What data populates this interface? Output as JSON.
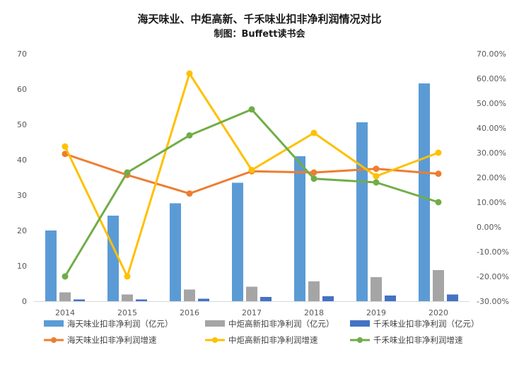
{
  "chart_data": {
    "type": "bar",
    "title": "海天味业、中炬高新、千禾味业扣非净利润情况对比",
    "subtitle": "制图：Buffett读书会",
    "categories": [
      "2014",
      "2015",
      "2016",
      "2017",
      "2018",
      "2019",
      "2020"
    ],
    "y_left": {
      "min": 0,
      "max": 70,
      "step": 10,
      "ticks": [
        "0",
        "10",
        "20",
        "30",
        "40",
        "50",
        "60",
        "70"
      ]
    },
    "y_right": {
      "min": -30,
      "max": 70,
      "step": 10,
      "ticks": [
        "-30.00%",
        "-20.00%",
        "-10.00%",
        "0.00%",
        "10.00%",
        "20.00%",
        "30.00%",
        "40.00%",
        "50.00%",
        "60.00%",
        "70.00%"
      ]
    },
    "grid": false,
    "legend_position": "bottom",
    "bar_series": [
      {
        "name": "海天味业扣非净利润（亿元）",
        "color": "#5b9bd5",
        "values": [
          20.0,
          24.2,
          27.7,
          33.5,
          41.0,
          50.6,
          61.6
        ]
      },
      {
        "name": "中炬高新扣非净利润（亿元）",
        "color": "#a5a5a5",
        "values": [
          2.5,
          1.9,
          3.3,
          4.1,
          5.6,
          6.8,
          8.8
        ]
      },
      {
        "name": "千禾味业扣非净利润（亿元）",
        "color": "#4472c4",
        "values": [
          0.5,
          0.5,
          0.7,
          1.2,
          1.4,
          1.6,
          1.9
        ]
      }
    ],
    "line_series": [
      {
        "name": "海天味业扣非净利润增速",
        "color": "#ed7d31",
        "values": [
          29.5,
          21.0,
          13.5,
          22.5,
          22.0,
          23.5,
          21.5
        ]
      },
      {
        "name": "中炬高新扣非净利润增速",
        "color": "#ffc000",
        "values": [
          32.5,
          -20.0,
          62.0,
          23.0,
          38.0,
          20.5,
          30.0
        ]
      },
      {
        "name": "千禾味业扣非净利润增速",
        "color": "#70ad47",
        "values": [
          -20.0,
          22.0,
          37.0,
          47.5,
          19.5,
          18.0,
          10.0
        ]
      }
    ]
  }
}
